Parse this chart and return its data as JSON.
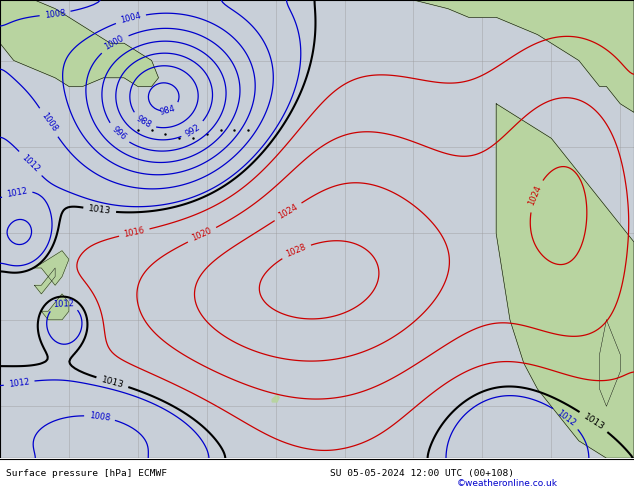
{
  "title_left": "Surface pressure [hPa] ECMWF",
  "title_right": "SU 05-05-2024 12:00 UTC (00+108)",
  "credit": "©weatheronline.co.uk",
  "bg_ocean": "#c8cfd8",
  "bg_land": "#b8d4a0",
  "grid_color": "#999999",
  "figsize": [
    6.34,
    4.9
  ],
  "dpi": 100,
  "xlim": [
    160,
    250
  ],
  "ylim": [
    14,
    66
  ],
  "bottom_text_color": "#000000",
  "credit_color": "#0000cc"
}
